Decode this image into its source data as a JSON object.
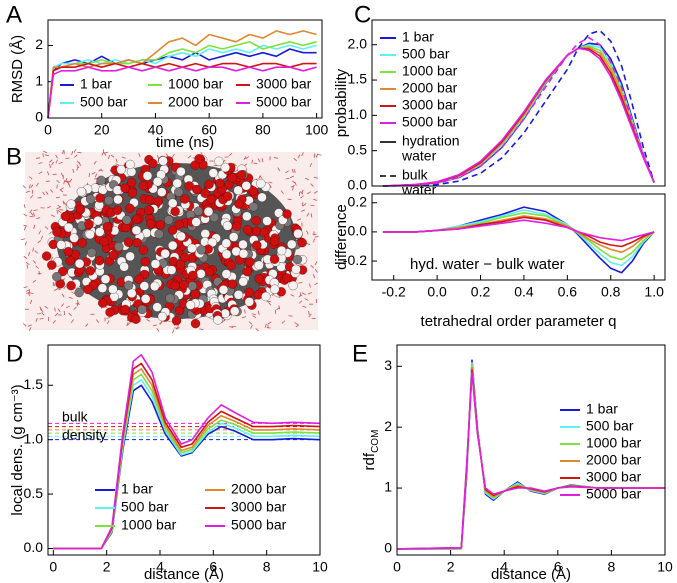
{
  "chart_data": [
    {
      "type": "line",
      "panel": "A",
      "xlabel": "time (ns)",
      "ylabel": "RMSD (Å)",
      "xlim": [
        0,
        102
      ],
      "ylim": [
        0,
        2.7
      ],
      "xticks": [
        0,
        20,
        40,
        60,
        80,
        100
      ],
      "yticks": [
        0,
        1,
        2
      ],
      "x": [
        0,
        2,
        5,
        10,
        15,
        20,
        25,
        30,
        35,
        40,
        45,
        50,
        55,
        60,
        65,
        70,
        75,
        80,
        85,
        90,
        95,
        100
      ],
      "series": [
        {
          "name": "1 bar",
          "color": "#1a1adb",
          "values": [
            0,
            1.3,
            1.5,
            1.6,
            1.5,
            1.7,
            1.5,
            1.6,
            1.5,
            1.6,
            1.7,
            1.6,
            1.8,
            1.6,
            1.7,
            1.8,
            1.7,
            1.8,
            1.7,
            1.9,
            1.8,
            1.8
          ]
        },
        {
          "name": "500 bar",
          "color": "#5ef2f2",
          "values": [
            0,
            1.4,
            1.5,
            1.5,
            1.6,
            1.5,
            1.6,
            1.5,
            1.6,
            1.5,
            1.7,
            1.8,
            1.7,
            1.9,
            1.8,
            1.9,
            1.8,
            2.0,
            1.9,
            2.0,
            1.9,
            2.0
          ]
        },
        {
          "name": "1000 bar",
          "color": "#80e040",
          "values": [
            0,
            1.3,
            1.4,
            1.5,
            1.5,
            1.6,
            1.5,
            1.5,
            1.6,
            1.6,
            1.8,
            1.9,
            1.8,
            2.0,
            1.9,
            2.0,
            2.1,
            1.9,
            2.0,
            2.1,
            2.0,
            2.1
          ]
        },
        {
          "name": "2000 bar",
          "color": "#e08830",
          "values": [
            0,
            1.4,
            1.4,
            1.5,
            1.4,
            1.5,
            1.5,
            1.6,
            1.5,
            1.8,
            2.1,
            2.2,
            2.0,
            2.3,
            2.2,
            2.1,
            2.3,
            2.2,
            2.4,
            2.3,
            2.4,
            2.3
          ]
        },
        {
          "name": "3000 bar",
          "color": "#d01414",
          "values": [
            0,
            1.3,
            1.4,
            1.4,
            1.5,
            1.4,
            1.5,
            1.4,
            1.5,
            1.4,
            1.5,
            1.4,
            1.5,
            1.4,
            1.5,
            1.5,
            1.4,
            1.5,
            1.5,
            1.4,
            1.5,
            1.5
          ]
        },
        {
          "name": "5000 bar",
          "color": "#e020e0",
          "values": [
            0,
            1.2,
            1.3,
            1.3,
            1.4,
            1.3,
            1.3,
            1.4,
            1.3,
            1.4,
            1.3,
            1.4,
            1.3,
            1.4,
            1.4,
            1.3,
            1.4,
            1.3,
            1.4,
            1.4,
            1.3,
            1.4
          ]
        }
      ]
    },
    {
      "type": "image",
      "panel": "B"
    },
    {
      "type": "line",
      "panel": "C",
      "ylabel": "probability",
      "xlim": [
        -0.3,
        1.05
      ],
      "ylim": [
        0,
        2.35
      ],
      "yticks": [
        {
          "value": 0,
          "label": "0.0"
        },
        {
          "value": 0.5,
          "label": "0.5"
        },
        {
          "value": 1,
          "label": "1.0"
        },
        {
          "value": 1.5,
          "label": "1.5"
        },
        {
          "value": 2,
          "label": "2.0"
        }
      ],
      "x": [
        -0.25,
        -0.1,
        0,
        0.1,
        0.2,
        0.3,
        0.4,
        0.5,
        0.6,
        0.65,
        0.7,
        0.75,
        0.8,
        0.85,
        0.9,
        0.95,
        1.0
      ],
      "series": [
        {
          "name": "1 bar",
          "color": "#1a1adb",
          "values": [
            0,
            0.01,
            0.04,
            0.12,
            0.28,
            0.55,
            0.95,
            1.45,
            1.85,
            1.95,
            2.02,
            2.0,
            1.8,
            1.45,
            0.95,
            0.45,
            0.05
          ]
        },
        {
          "name": "500 bar",
          "color": "#5ef2f2",
          "values": [
            0,
            0.01,
            0.04,
            0.13,
            0.3,
            0.57,
            0.97,
            1.46,
            1.85,
            1.95,
            2.0,
            1.96,
            1.75,
            1.4,
            0.92,
            0.44,
            0.05
          ]
        },
        {
          "name": "1000 bar",
          "color": "#80e040",
          "values": [
            0,
            0.01,
            0.05,
            0.14,
            0.31,
            0.6,
            0.99,
            1.47,
            1.85,
            1.95,
            1.98,
            1.92,
            1.7,
            1.35,
            0.89,
            0.43,
            0.05
          ]
        },
        {
          "name": "2000 bar",
          "color": "#e08830",
          "values": [
            0,
            0.02,
            0.05,
            0.14,
            0.32,
            0.61,
            1.01,
            1.48,
            1.85,
            1.95,
            1.96,
            1.88,
            1.65,
            1.3,
            0.86,
            0.42,
            0.05
          ]
        },
        {
          "name": "3000 bar",
          "color": "#d01414",
          "values": [
            0,
            0.02,
            0.05,
            0.15,
            0.33,
            0.63,
            1.03,
            1.49,
            1.85,
            1.95,
            1.94,
            1.84,
            1.6,
            1.25,
            0.83,
            0.41,
            0.05
          ]
        },
        {
          "name": "5000 bar",
          "color": "#e020e0",
          "values": [
            0,
            0.02,
            0.06,
            0.16,
            0.35,
            0.65,
            1.05,
            1.5,
            1.85,
            1.95,
            1.92,
            1.8,
            1.55,
            1.2,
            0.8,
            0.4,
            0.05
          ]
        },
        {
          "color": "#1a1adb",
          "dashed": true,
          "values": [
            0,
            0.01,
            0.02,
            0.07,
            0.18,
            0.4,
            0.75,
            1.2,
            1.65,
            1.95,
            2.15,
            2.2,
            2.05,
            1.7,
            1.15,
            0.55,
            0.05
          ]
        },
        {
          "color": "#e020e0",
          "dashed": true,
          "values": [
            0,
            0.01,
            0.04,
            0.12,
            0.28,
            0.55,
            0.95,
            1.4,
            1.85,
            2.02,
            2.1,
            2.0,
            1.75,
            1.4,
            0.9,
            0.45,
            0.05
          ]
        }
      ],
      "line_styles": [
        {
          "label": [
            "hydration",
            "water"
          ],
          "dashed": false
        },
        {
          "label": [
            "bulk",
            "water"
          ],
          "dashed": true
        }
      ]
    },
    {
      "type": "line",
      "ylabel": "difference",
      "xlabel": "tetrahedral order parameter q",
      "annotation": "hyd. water − bulk water",
      "xlim": [
        -0.3,
        1.05
      ],
      "ylim": [
        -0.33,
        0.26
      ],
      "xticks": [
        {
          "value": -0.2,
          "label": "-0.2"
        },
        {
          "value": 0,
          "label": "0.0"
        },
        {
          "value": 0.2,
          "label": "0.2"
        },
        {
          "value": 0.4,
          "label": "0.4"
        },
        {
          "value": 0.6,
          "label": "0.6"
        },
        {
          "value": 0.8,
          "label": "0.8"
        },
        {
          "value": 1,
          "label": "1.0"
        }
      ],
      "yticks": [
        {
          "value": -0.2,
          "label": "-0.2"
        },
        {
          "value": 0,
          "label": "0.0"
        },
        {
          "value": 0.2,
          "label": "0.2"
        }
      ],
      "x": [
        -0.25,
        -0.1,
        0,
        0.1,
        0.2,
        0.3,
        0.4,
        0.5,
        0.6,
        0.65,
        0.7,
        0.75,
        0.8,
        0.85,
        0.9,
        0.95,
        1.0
      ],
      "series": [
        {
          "color": "#1a1adb",
          "values": [
            0,
            0,
            0.01,
            0.04,
            0.08,
            0.12,
            0.17,
            0.14,
            0.05,
            -0.02,
            -0.1,
            -0.18,
            -0.25,
            -0.28,
            -0.2,
            -0.08,
            0
          ]
        },
        {
          "color": "#5ef2f2",
          "values": [
            0,
            0,
            0.01,
            0.04,
            0.07,
            0.11,
            0.15,
            0.12,
            0.05,
            -0.01,
            -0.08,
            -0.15,
            -0.21,
            -0.23,
            -0.17,
            -0.07,
            0
          ]
        },
        {
          "color": "#80e040",
          "values": [
            0,
            0,
            0.01,
            0.03,
            0.06,
            0.1,
            0.13,
            0.11,
            0.04,
            -0.01,
            -0.06,
            -0.12,
            -0.17,
            -0.19,
            -0.14,
            -0.06,
            0
          ]
        },
        {
          "color": "#e08830",
          "values": [
            0,
            0,
            0.01,
            0.03,
            0.05,
            0.08,
            0.11,
            0.09,
            0.04,
            0,
            -0.05,
            -0.09,
            -0.12,
            -0.14,
            -0.1,
            -0.04,
            0
          ]
        },
        {
          "color": "#d01414",
          "values": [
            0,
            0,
            0.01,
            0.02,
            0.05,
            0.07,
            0.1,
            0.08,
            0.03,
            0,
            -0.03,
            -0.07,
            -0.09,
            -0.1,
            -0.07,
            -0.03,
            0
          ]
        },
        {
          "color": "#e020e0",
          "values": [
            0,
            0,
            0.01,
            0.02,
            0.04,
            0.06,
            0.08,
            0.06,
            0.03,
            0,
            -0.02,
            -0.04,
            -0.05,
            -0.06,
            -0.04,
            -0.02,
            0
          ]
        }
      ]
    },
    {
      "type": "line",
      "panel": "D",
      "xlabel": "distance (Å)",
      "ylabel": "local dens. (g cm⁻³)",
      "annotation": [
        "bulk",
        "density"
      ],
      "xlim": [
        -0.2,
        10
      ],
      "ylim": [
        -0.06,
        1.87
      ],
      "xticks": [
        0,
        2,
        4,
        6,
        8,
        10
      ],
      "yticks": [
        {
          "value": 0,
          "label": "0.0"
        },
        {
          "value": 0.5,
          "label": "0.5"
        },
        {
          "value": 1,
          "label": "1.0"
        },
        {
          "value": 1.5,
          "label": "1.5"
        }
      ],
      "x": [
        0,
        1,
        1.8,
        2.2,
        2.6,
        3.0,
        3.3,
        3.7,
        4.2,
        4.8,
        5.2,
        5.8,
        6.3,
        6.8,
        7.5,
        8.2,
        9,
        10
      ],
      "series": [
        {
          "name": "1 bar",
          "color": "#1a1adb",
          "bulk": 1.0,
          "values": [
            0,
            0,
            0,
            0.15,
            0.9,
            1.45,
            1.5,
            1.35,
            1.05,
            0.85,
            0.88,
            1.05,
            1.12,
            1.08,
            1.0,
            1.0,
            1.01,
            1.0
          ]
        },
        {
          "name": "500 bar",
          "color": "#5ef2f2",
          "bulk": 1.03,
          "values": [
            0,
            0,
            0,
            0.16,
            0.93,
            1.5,
            1.55,
            1.4,
            1.08,
            0.86,
            0.89,
            1.07,
            1.15,
            1.11,
            1.03,
            1.03,
            1.04,
            1.03
          ]
        },
        {
          "name": "1000 bar",
          "color": "#80e040",
          "bulk": 1.06,
          "values": [
            0,
            0,
            0,
            0.17,
            0.96,
            1.55,
            1.6,
            1.45,
            1.1,
            0.88,
            0.91,
            1.1,
            1.18,
            1.14,
            1.06,
            1.06,
            1.07,
            1.06
          ]
        },
        {
          "name": "2000 bar",
          "color": "#e08830",
          "bulk": 1.09,
          "values": [
            0,
            0,
            0,
            0.18,
            0.99,
            1.6,
            1.65,
            1.5,
            1.13,
            0.9,
            0.93,
            1.13,
            1.22,
            1.17,
            1.09,
            1.09,
            1.1,
            1.09
          ]
        },
        {
          "name": "3000 bar",
          "color": "#d01414",
          "bulk": 1.12,
          "values": [
            0,
            0,
            0,
            0.19,
            1.02,
            1.65,
            1.7,
            1.55,
            1.16,
            0.93,
            0.96,
            1.16,
            1.26,
            1.2,
            1.12,
            1.12,
            1.13,
            1.12
          ]
        },
        {
          "name": "5000 bar",
          "color": "#e020e0",
          "bulk": 1.15,
          "values": [
            0,
            0,
            0,
            0.2,
            1.05,
            1.72,
            1.78,
            1.62,
            1.2,
            0.96,
            1.0,
            1.2,
            1.32,
            1.25,
            1.16,
            1.15,
            1.16,
            1.15
          ]
        }
      ]
    },
    {
      "type": "line",
      "panel": "E",
      "xlabel": "distance (Å)",
      "ylabel": "rdf",
      "ylabel_sub": "COM",
      "xlim": [
        0,
        10
      ],
      "ylim": [
        -0.1,
        3.35
      ],
      "xticks": [
        0,
        2,
        4,
        6,
        8,
        10
      ],
      "yticks": [
        0,
        1,
        2,
        3
      ],
      "x": [
        0,
        2.4,
        2.6,
        2.8,
        3.0,
        3.3,
        3.6,
        4.0,
        4.5,
        5.0,
        5.5,
        6.0,
        6.5,
        7.5,
        8.5,
        10
      ],
      "series": [
        {
          "name": "1 bar",
          "color": "#1a1adb",
          "values": [
            0,
            0,
            1.2,
            3.1,
            2.0,
            0.9,
            0.8,
            0.95,
            1.1,
            0.95,
            0.9,
            1.0,
            1.05,
            1.0,
            1.0,
            1.0
          ]
        },
        {
          "name": "500 bar",
          "color": "#5ef2f2",
          "values": [
            0,
            0,
            1.24,
            3.06,
            1.98,
            0.92,
            0.82,
            0.95,
            1.08,
            0.96,
            0.91,
            1.0,
            1.04,
            1.0,
            1.0,
            1.0
          ]
        },
        {
          "name": "1000 bar",
          "color": "#80e040",
          "values": [
            0,
            0.01,
            1.28,
            3.02,
            1.96,
            0.94,
            0.84,
            0.95,
            1.06,
            0.97,
            0.92,
            1.0,
            1.04,
            1.0,
            1.0,
            1.0
          ]
        },
        {
          "name": "2000 bar",
          "color": "#e08830",
          "values": [
            0,
            0.01,
            1.32,
            2.98,
            1.94,
            0.96,
            0.86,
            0.95,
            1.04,
            0.98,
            0.93,
            1.0,
            1.03,
            1.0,
            1.0,
            1.0
          ]
        },
        {
          "name": "3000 bar",
          "color": "#d01414",
          "values": [
            0,
            0.02,
            1.36,
            2.94,
            1.92,
            0.98,
            0.88,
            0.95,
            1.02,
            0.99,
            0.94,
            1.0,
            1.03,
            1.0,
            1.0,
            1.0
          ]
        },
        {
          "name": "5000 bar",
          "color": "#e020e0",
          "values": [
            0,
            0.02,
            1.4,
            2.9,
            1.9,
            1.0,
            0.9,
            0.95,
            1.0,
            1.0,
            0.95,
            1.0,
            1.02,
            1.0,
            1.0,
            1.0
          ]
        }
      ]
    }
  ]
}
